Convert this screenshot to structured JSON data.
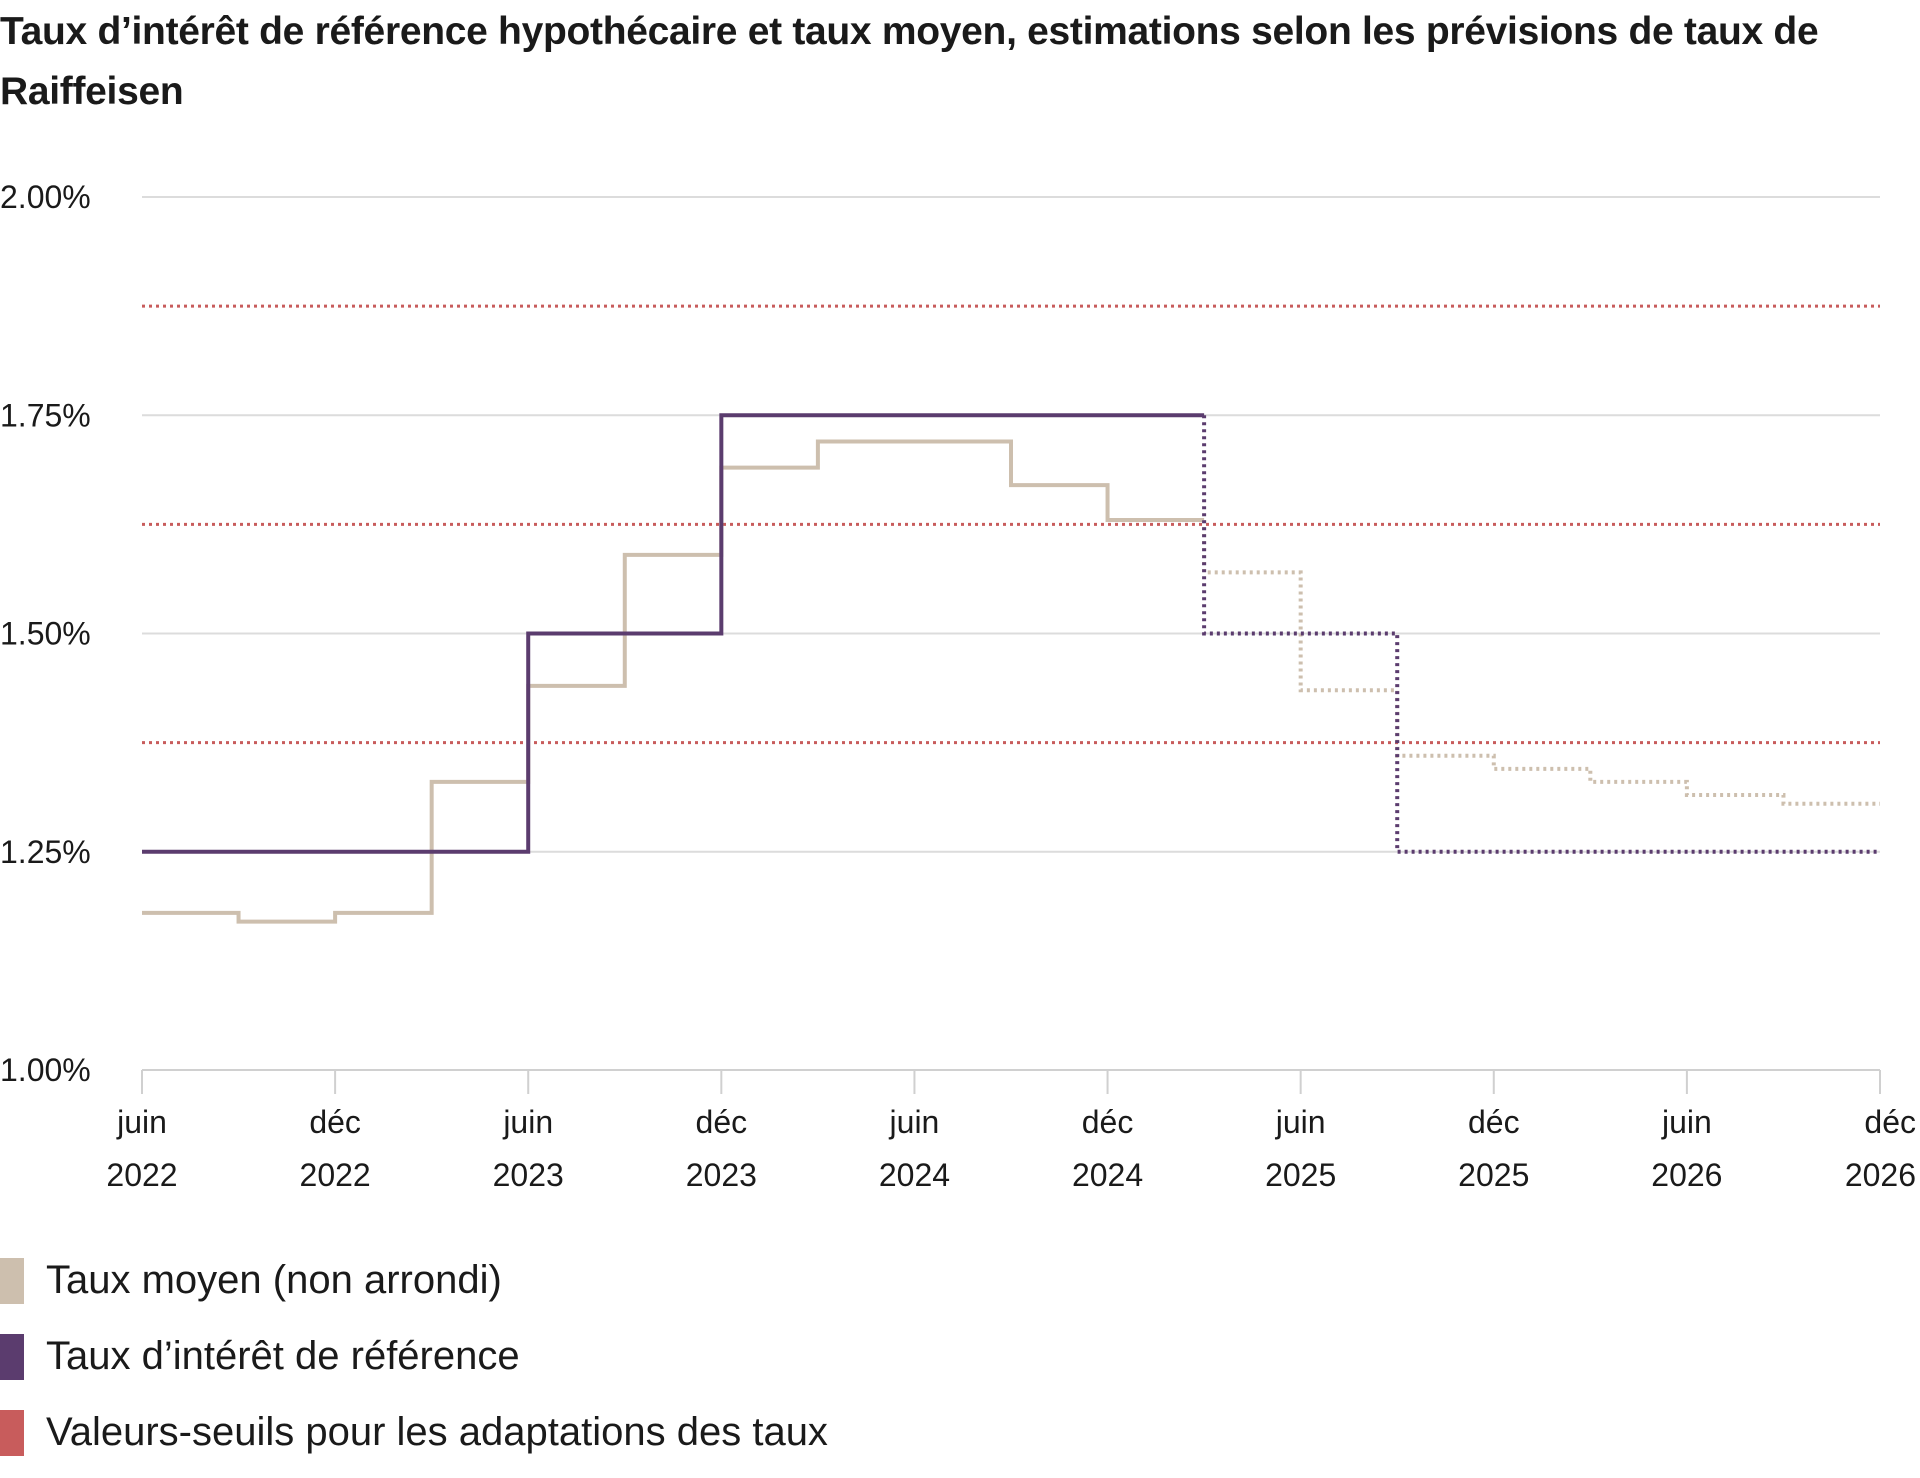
{
  "chart_data": {
    "type": "line",
    "title": "Taux d’intérêt de référence hypothécaire et taux moyen, estimations selon les prévisions de taux de Raiffeisen",
    "y_axis": {
      "range": [
        1.0,
        2.0
      ],
      "ticks": [
        1.0,
        1.25,
        1.5,
        1.75,
        2.0
      ],
      "tick_labels": [
        "1.00%",
        "1.25%",
        "1.50%",
        "1.75%",
        "2.00%"
      ]
    },
    "x_axis": {
      "range": [
        "2022-06",
        "2026-12"
      ],
      "ticks": [
        "2022-06",
        "2022-12",
        "2023-06",
        "2023-12",
        "2024-06",
        "2024-12",
        "2025-06",
        "2025-12",
        "2026-06",
        "2026-12"
      ],
      "tick_labels": [
        [
          "juin",
          "2022"
        ],
        [
          "déc",
          "2022"
        ],
        [
          "juin",
          "2023"
        ],
        [
          "déc",
          "2023"
        ],
        [
          "juin",
          "2024"
        ],
        [
          "déc",
          "2024"
        ],
        [
          "juin",
          "2025"
        ],
        [
          "déc",
          "2025"
        ],
        [
          "juin",
          "2026"
        ],
        [
          "déc",
          "2026"
        ]
      ]
    },
    "grid": true,
    "legend_position": "bottom-left",
    "series": [
      {
        "name": "Taux moyen (non arrondi)",
        "color": "#cdbfae",
        "step": true,
        "actual": [
          {
            "x": "2022-06",
            "y": 1.18
          },
          {
            "x": "2022-09",
            "y": 1.17
          },
          {
            "x": "2022-12",
            "y": 1.18
          },
          {
            "x": "2023-03",
            "y": 1.33
          },
          {
            "x": "2023-06",
            "y": 1.44
          },
          {
            "x": "2023-09",
            "y": 1.59
          },
          {
            "x": "2023-12",
            "y": 1.69
          },
          {
            "x": "2024-03",
            "y": 1.72
          },
          {
            "x": "2024-09",
            "y": 1.67
          },
          {
            "x": "2024-12",
            "y": 1.63
          }
        ],
        "forecast": [
          {
            "x": "2025-03",
            "y": 1.57
          },
          {
            "x": "2025-06",
            "y": 1.435
          },
          {
            "x": "2025-09",
            "y": 1.36
          },
          {
            "x": "2025-12",
            "y": 1.345
          },
          {
            "x": "2026-03",
            "y": 1.33
          },
          {
            "x": "2026-06",
            "y": 1.315
          },
          {
            "x": "2026-09",
            "y": 1.305
          }
        ],
        "end": "2026-12"
      },
      {
        "name": "Taux d’intérêt de référence",
        "color": "#5b3c6e",
        "step": true,
        "actual": [
          {
            "x": "2022-06",
            "y": 1.25
          },
          {
            "x": "2023-06",
            "y": 1.5
          },
          {
            "x": "2023-12",
            "y": 1.75
          }
        ],
        "forecast": [
          {
            "x": "2025-03",
            "y": 1.5
          },
          {
            "x": "2025-09",
            "y": 1.25
          }
        ],
        "end": "2026-12"
      },
      {
        "name": "Valeurs-seuils pour les adaptations des taux",
        "color": "#c85c5c",
        "style": "dotted",
        "thresholds": [
          1.375,
          1.625,
          1.875
        ]
      }
    ]
  }
}
